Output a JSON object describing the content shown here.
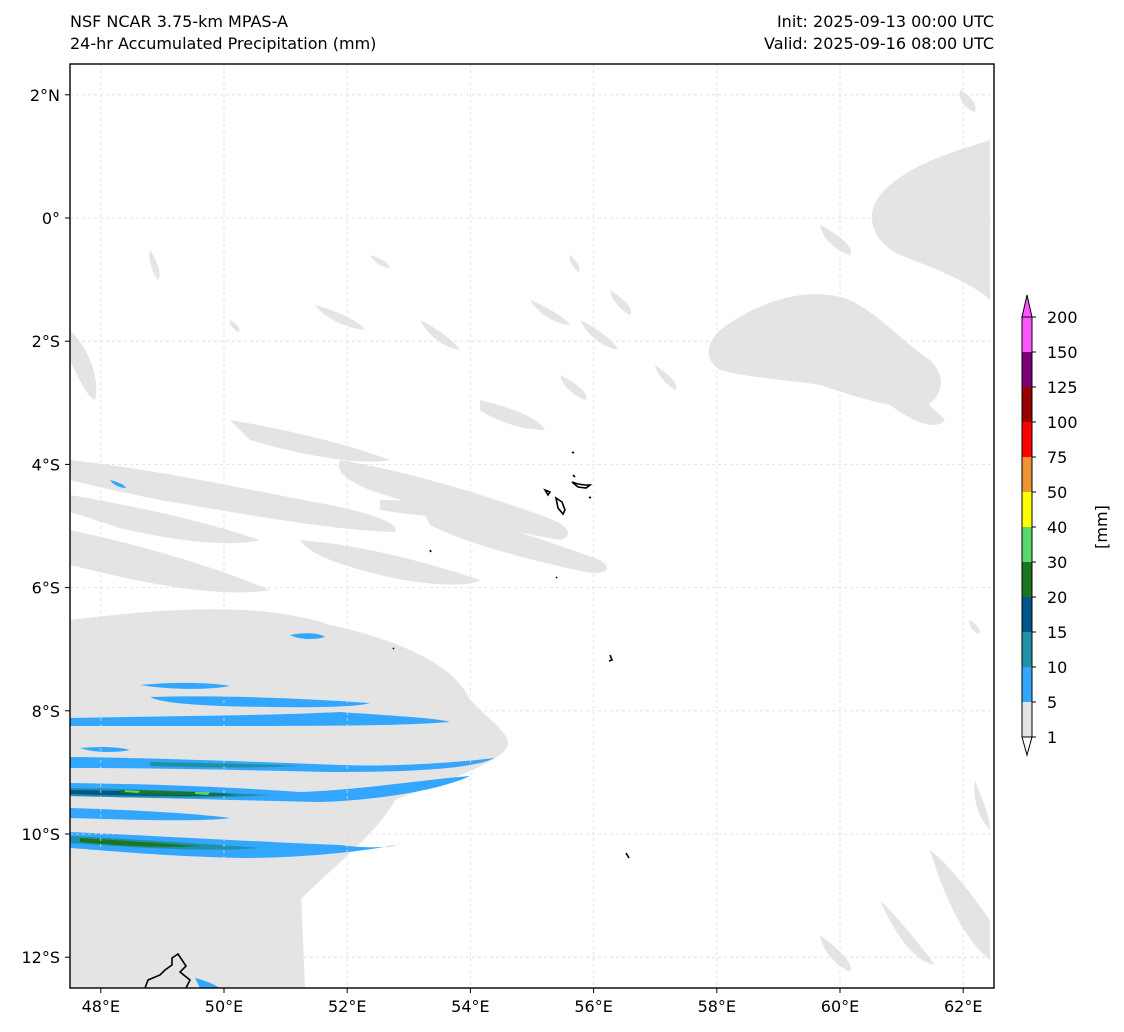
{
  "header": {
    "model": "NSF NCAR 3.75-km MPAS-A",
    "field": "24-hr Accumulated Precipitation (mm)",
    "init": "Init: 2025-09-13 00:00 UTC",
    "valid": "Valid: 2025-09-16 08:00 UTC"
  },
  "map": {
    "lon_range": [
      47.5,
      62.5
    ],
    "lat_range": [
      -12.5,
      2.5
    ],
    "lon_ticks": [
      "48°E",
      "50°E",
      "52°E",
      "54°E",
      "56°E",
      "58°E",
      "60°E",
      "62°E"
    ],
    "lat_ticks": [
      "2°N",
      "0°",
      "2°S",
      "4°S",
      "6°S",
      "8°S",
      "10°S",
      "12°S"
    ],
    "gridlines": true
  },
  "colorbar": {
    "label": "[mm]",
    "levels": [
      "1",
      "5",
      "10",
      "15",
      "20",
      "30",
      "40",
      "50",
      "75",
      "100",
      "125",
      "150",
      "200"
    ],
    "colors": [
      "#e4e4e4",
      "#33a7ff",
      "#1f91a6",
      "#00568a",
      "#1c7520",
      "#58d86c",
      "#ffff00",
      "#ef9433",
      "#ff0000",
      "#990000",
      "#7a0077",
      "#ff55ff"
    ],
    "extend": "both"
  }
}
